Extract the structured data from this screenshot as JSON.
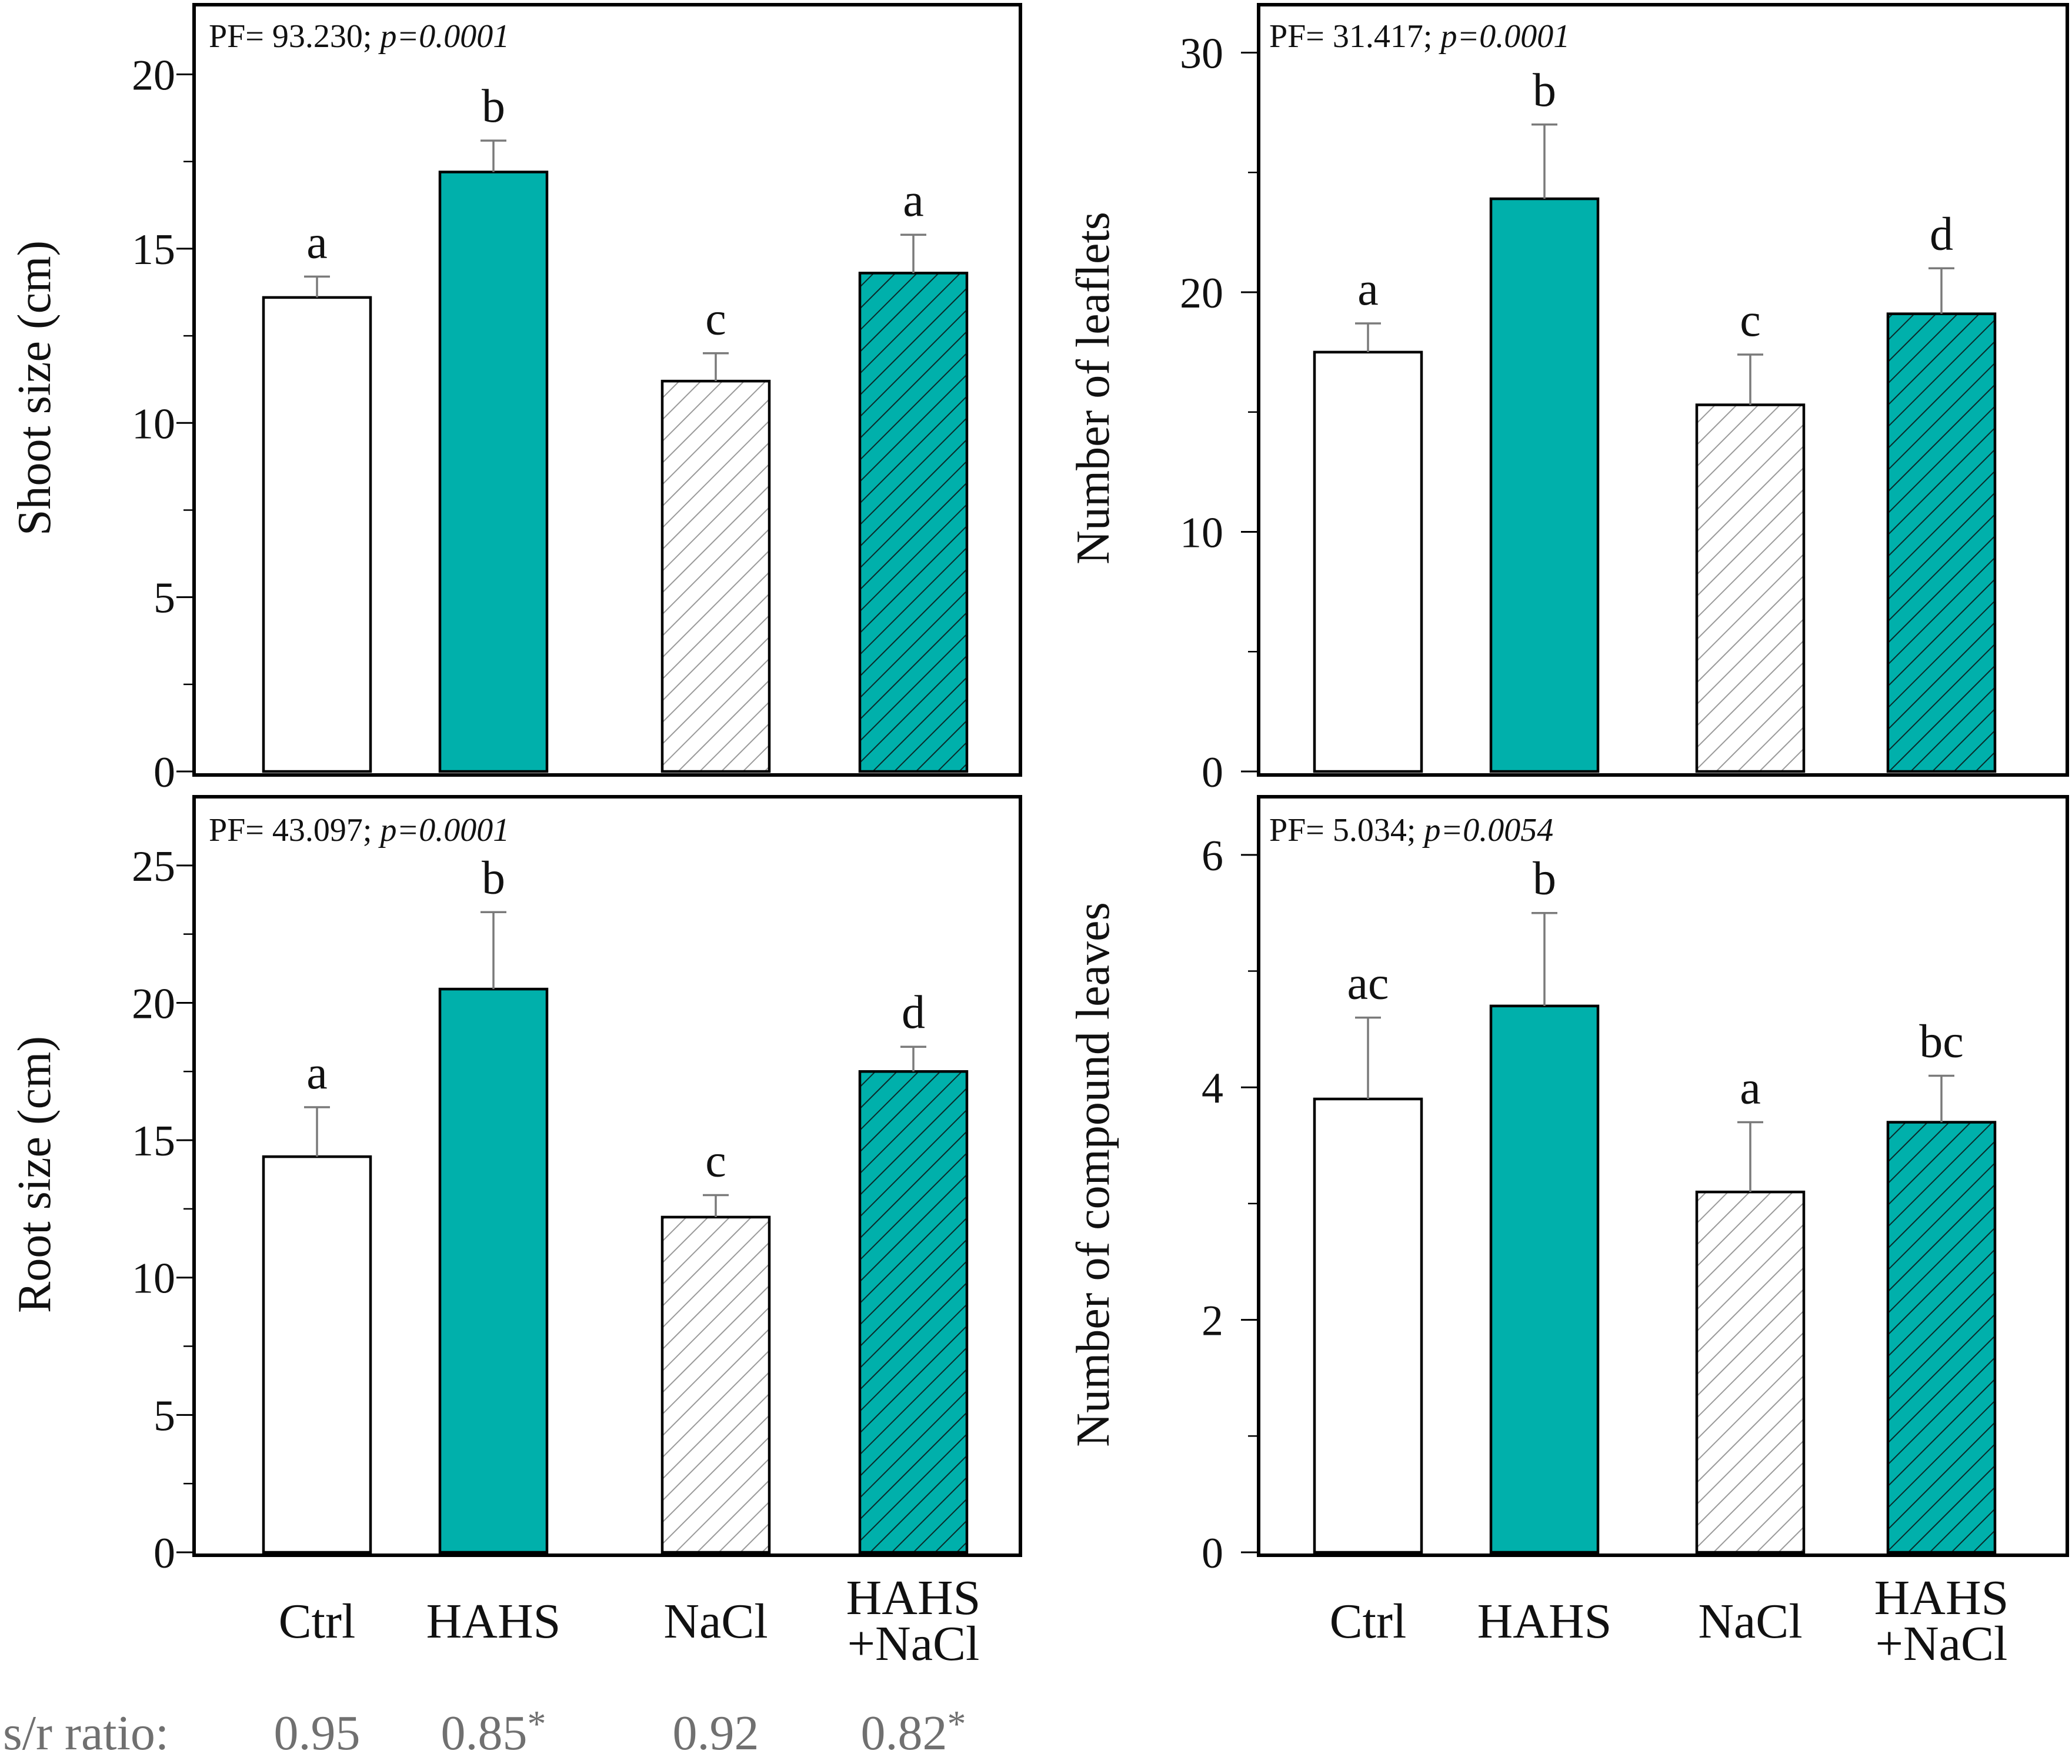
{
  "figure": {
    "x_categories": [
      {
        "lines": [
          "Ctrl"
        ]
      },
      {
        "lines": [
          "HAHS"
        ]
      },
      {
        "lines": [
          "NaCl"
        ]
      },
      {
        "lines": [
          "HAHS",
          "+NaCl"
        ]
      }
    ],
    "ratio_row": {
      "label": "s/r ratio:",
      "values": [
        {
          "value": "0.95",
          "mark": ""
        },
        {
          "value": "0.85",
          "mark": "*"
        },
        {
          "value": "0.92",
          "mark": ""
        },
        {
          "value": "0.82",
          "mark": "*"
        }
      ]
    }
  },
  "colors": {
    "teal": "#00b0ab",
    "white": "#ffffff",
    "hatch_light": "#9a9a9a",
    "hatch_dark": "#0a2a2a",
    "error_bar": "#7a7a7a",
    "ratio_text": "#707070"
  },
  "chart_data": [
    {
      "type": "bar",
      "panel": "top-left",
      "ylabel": "Shoot size (cm)",
      "stat": {
        "prefix": "PF= 93.230; ",
        "p": "p=0.0001"
      },
      "categories": [
        "Ctrl",
        "HAHS",
        "NaCl",
        "HAHS +NaCl"
      ],
      "values": [
        13.6,
        17.2,
        11.2,
        14.3
      ],
      "errors": [
        0.6,
        0.9,
        0.8,
        1.1
      ],
      "letters": [
        "a",
        "b",
        "c",
        "a"
      ],
      "ylim": [
        0,
        22
      ],
      "yticks": [
        0,
        5,
        10,
        15,
        20
      ],
      "minor_step": 2.5
    },
    {
      "type": "bar",
      "panel": "top-right",
      "ylabel": "Number of leaflets",
      "stat": {
        "prefix": "PF= 31.417; ",
        "p": "p=0.0001"
      },
      "categories": [
        "Ctrl",
        "HAHS",
        "NaCl",
        "HAHS +NaCl"
      ],
      "values": [
        17.5,
        23.9,
        15.3,
        19.1
      ],
      "errors": [
        1.2,
        3.1,
        2.1,
        1.9
      ],
      "letters": [
        "a",
        "b",
        "c",
        "d"
      ],
      "ylim": [
        0,
        32
      ],
      "yticks": [
        0,
        10,
        20,
        30
      ],
      "minor_step": 5
    },
    {
      "type": "bar",
      "panel": "bottom-left",
      "ylabel": "Root size (cm)",
      "stat": {
        "prefix": "PF= 43.097; ",
        "p": "p=0.0001"
      },
      "categories": [
        "Ctrl",
        "HAHS",
        "NaCl",
        "HAHS +NaCl"
      ],
      "values": [
        14.4,
        20.5,
        12.2,
        17.5
      ],
      "errors": [
        1.8,
        2.8,
        0.8,
        0.9
      ],
      "letters": [
        "a",
        "b",
        "c",
        "d"
      ],
      "ylim": [
        0,
        27.5
      ],
      "yticks": [
        0,
        5,
        10,
        15,
        20,
        25
      ],
      "minor_step": 2.5
    },
    {
      "type": "bar",
      "panel": "bottom-right",
      "ylabel": "Number of compound leaves",
      "stat": {
        "prefix": "PF= 5.034; ",
        "p": "p=0.0054"
      },
      "categories": [
        "Ctrl",
        "HAHS",
        "NaCl",
        "HAHS +NaCl"
      ],
      "values": [
        3.9,
        4.7,
        3.1,
        3.7
      ],
      "errors": [
        0.7,
        0.8,
        0.6,
        0.4
      ],
      "letters": [
        "ac",
        "b",
        "a",
        "bc"
      ],
      "ylim": [
        0,
        6.5
      ],
      "yticks": [
        0,
        2,
        4,
        6
      ],
      "minor_step": 1
    }
  ]
}
